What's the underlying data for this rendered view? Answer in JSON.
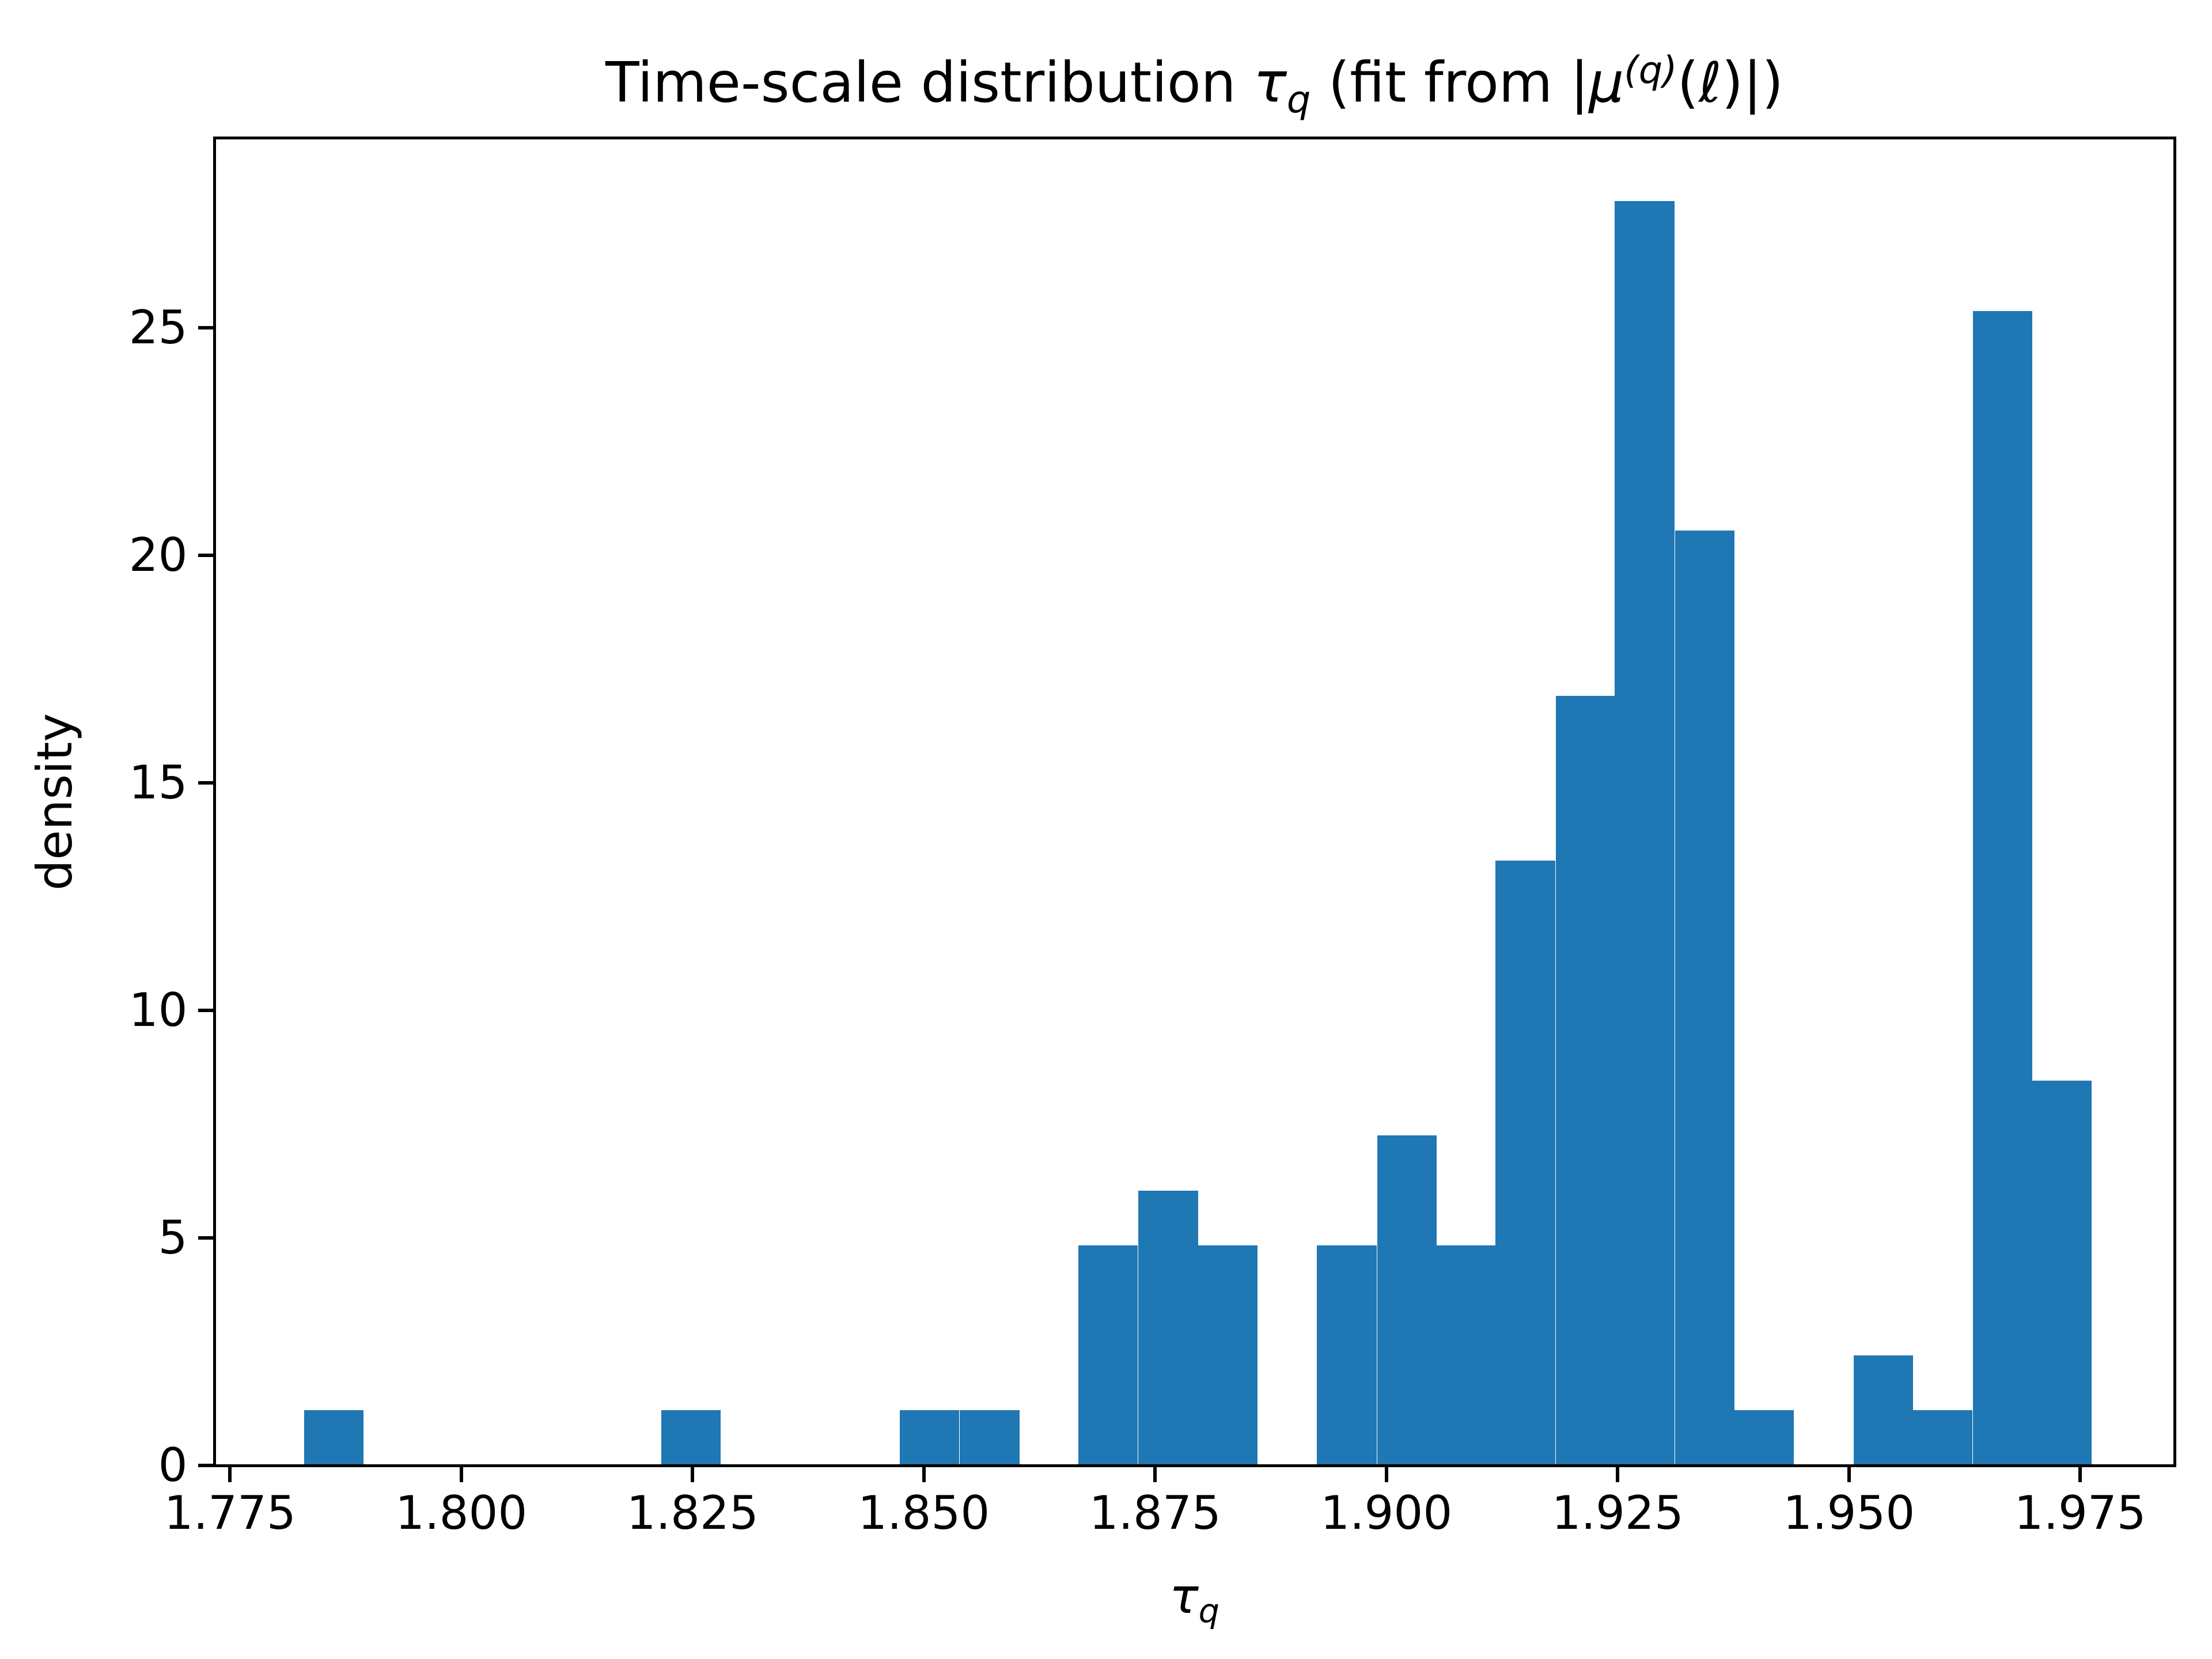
{
  "figure": {
    "background": "#ffffff",
    "ylabel": "density",
    "title_segments": [
      {
        "text": "Time-scale distribution ",
        "style": "normal"
      },
      {
        "text": "τ",
        "style": "italic"
      },
      {
        "text": "q",
        "style": "subscript"
      },
      {
        "text": " (fit from |",
        "style": "normal"
      },
      {
        "text": "μ",
        "style": "italic"
      },
      {
        "text": "(q)",
        "style": "superscript"
      },
      {
        "text": "(",
        "style": "normal"
      },
      {
        "text": "ℓ",
        "style": "italic"
      },
      {
        "text": ")|)",
        "style": "normal"
      }
    ],
    "xlabel_segments": [
      {
        "text": "τ",
        "style": "italic"
      },
      {
        "text": "q",
        "style": "subscript"
      }
    ]
  },
  "chart_data": {
    "type": "bar",
    "subtype": "histogram",
    "title": "Time-scale distribution τ_q (fit from |μ^(q)(ℓ)|)",
    "xlabel": "τ_q",
    "ylabel": "density",
    "bar_color": "#1f77b4",
    "grid": false,
    "legend": null,
    "bin_width": 0.00644,
    "bin_left_edges": [
      1.783,
      1.7894,
      1.7959,
      1.8023,
      1.8088,
      1.8152,
      1.8216,
      1.8281,
      1.8345,
      1.841,
      1.8474,
      1.8539,
      1.8603,
      1.8667,
      1.8732,
      1.8796,
      1.8861,
      1.8925,
      1.899,
      1.9054,
      1.9118,
      1.9183,
      1.9247,
      1.9312,
      1.9376,
      1.944,
      1.9505,
      1.9569,
      1.9634,
      1.9698
    ],
    "densities": [
      1.21,
      0,
      0,
      0,
      0,
      0,
      1.21,
      0,
      0,
      0,
      1.21,
      1.21,
      0,
      4.83,
      6.04,
      4.83,
      0,
      4.83,
      7.25,
      4.83,
      13.29,
      16.91,
      27.79,
      20.54,
      1.21,
      0,
      2.42,
      1.21,
      25.37,
      8.46
    ],
    "xlim": [
      1.7733,
      1.9852
    ],
    "ylim": [
      0,
      29.18
    ],
    "x_tick_values": [
      1.775,
      1.8,
      1.825,
      1.85,
      1.875,
      1.9,
      1.925,
      1.95,
      1.975
    ],
    "x_tick_labels": [
      "1.775",
      "1.800",
      "1.825",
      "1.850",
      "1.875",
      "1.900",
      "1.925",
      "1.950",
      "1.975"
    ],
    "y_tick_values": [
      0,
      5,
      10,
      15,
      20,
      25
    ],
    "y_tick_labels": [
      "0",
      "5",
      "10",
      "15",
      "20",
      "25"
    ]
  }
}
